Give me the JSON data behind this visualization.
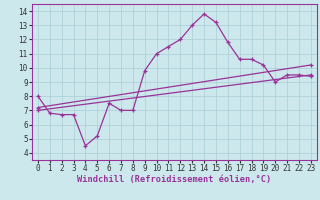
{
  "background_color": "#cce8ec",
  "grid_color": "#aacdd4",
  "line_color": "#993399",
  "xlabel": "Windchill (Refroidissement éolien,°C)",
  "xlabel_fontsize": 6.2,
  "xticks": [
    0,
    1,
    2,
    3,
    4,
    5,
    6,
    7,
    8,
    9,
    10,
    11,
    12,
    13,
    14,
    15,
    16,
    17,
    18,
    19,
    20,
    21,
    22,
    23
  ],
  "yticks": [
    4,
    5,
    6,
    7,
    8,
    9,
    10,
    11,
    12,
    13,
    14
  ],
  "xlim": [
    -0.5,
    23.5
  ],
  "ylim": [
    3.5,
    14.5
  ],
  "tick_fontsize": 5.5,
  "line1_x": [
    0,
    1,
    2,
    3,
    4,
    5,
    6,
    7,
    8,
    9,
    10,
    11,
    12,
    13,
    14,
    15,
    16,
    17,
    18,
    19,
    20,
    21,
    22,
    23
  ],
  "line1_y": [
    8.0,
    6.8,
    6.7,
    6.7,
    4.5,
    5.2,
    7.5,
    7.0,
    7.0,
    9.8,
    11.0,
    11.5,
    12.0,
    13.0,
    13.8,
    13.2,
    11.8,
    10.6,
    10.6,
    10.2,
    9.0,
    9.5,
    9.5,
    9.4
  ],
  "line2_x": [
    0,
    23
  ],
  "line2_y": [
    7.2,
    10.2
  ],
  "line3_x": [
    0,
    23
  ],
  "line3_y": [
    7.0,
    9.5
  ]
}
